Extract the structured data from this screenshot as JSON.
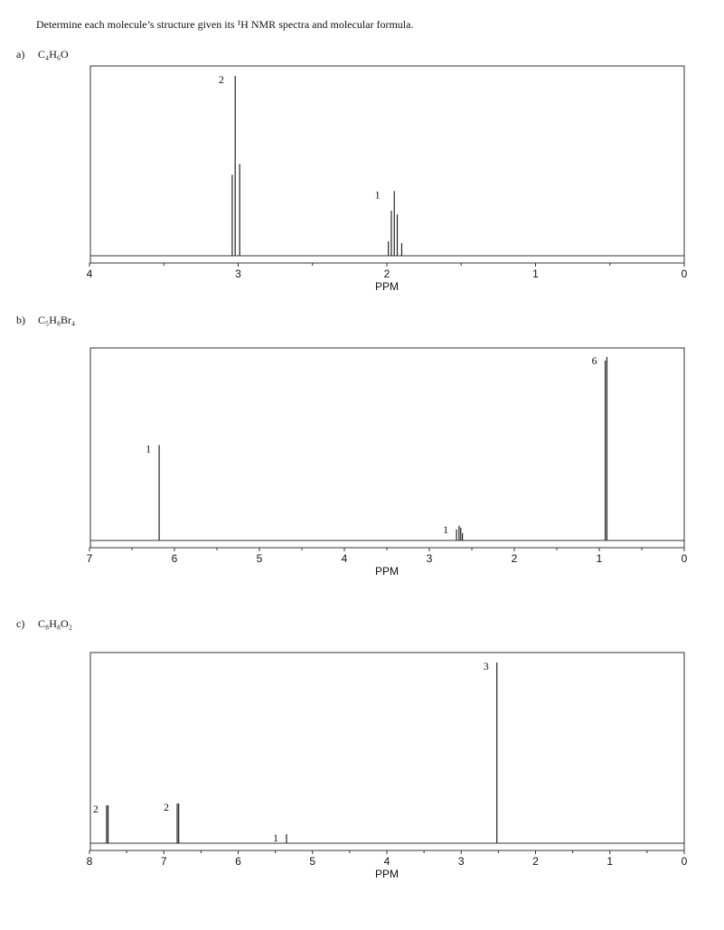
{
  "instruction": "Determine each molecule’s structure given its ¹H NMR spectra and molecular formula.",
  "problems": [
    {
      "label": "a)",
      "formula": "C₄H₆O",
      "chart_data": {
        "type": "nmr",
        "x_label": "PPM",
        "xlim": [
          4,
          0
        ],
        "xticks": [
          4,
          3,
          2,
          1,
          0
        ],
        "minor_xticks": [
          3.5,
          2.5,
          1.5,
          0.5
        ],
        "ylim": [
          0,
          1
        ],
        "peaks": [
          {
            "integration": 2,
            "x": [
              3.04,
              3.02,
              2.99
            ],
            "y": [
              0.45,
              1.0,
              0.51
            ]
          },
          {
            "integration": 1,
            "x": [
              1.99,
              1.97,
              1.95,
              1.93,
              1.9
            ],
            "y": [
              0.08,
              0.25,
              0.36,
              0.23,
              0.07
            ]
          }
        ]
      }
    },
    {
      "label": "b)",
      "formula": "C₅H₈Br₄",
      "chart_data": {
        "type": "nmr",
        "x_label": "PPM",
        "xlim": [
          7,
          0
        ],
        "xticks": [
          7,
          6,
          5,
          4,
          3,
          2,
          1,
          0
        ],
        "minor_xticks": [
          6.5,
          5.5,
          4.5,
          3.5,
          2.5,
          1.5,
          0.5
        ],
        "ylim": [
          0,
          1
        ],
        "peaks": [
          {
            "integration": 1,
            "x": [
              6.18
            ],
            "y": [
              0.52
            ]
          },
          {
            "integration": 1,
            "x": [
              2.68,
              2.65,
              2.63,
              2.61
            ],
            "y": [
              0.06,
              0.08,
              0.07,
              0.04
            ]
          },
          {
            "integration": 6,
            "x": [
              0.93,
              0.91
            ],
            "y": [
              0.98,
              1.0
            ]
          }
        ]
      }
    },
    {
      "label": "c)",
      "formula": "C₈H₈O₂",
      "chart_data": {
        "type": "nmr",
        "x_label": "PPM",
        "xlim": [
          8,
          0
        ],
        "xticks": [
          8,
          7,
          6,
          5,
          4,
          3,
          2,
          1,
          0
        ],
        "minor_xticks": [
          7.5,
          6.5,
          5.5,
          4.5,
          3.5,
          2.5,
          1.5,
          0.5
        ],
        "ylim": [
          0,
          1
        ],
        "peaks": [
          {
            "integration": 2,
            "x": [
              7.77,
              7.75
            ],
            "y": [
              0.21,
              0.21
            ]
          },
          {
            "integration": 2,
            "x": [
              6.82,
              6.8
            ],
            "y": [
              0.22,
              0.22
            ]
          },
          {
            "integration": 1,
            "x": [
              5.35
            ],
            "y": [
              0.05
            ]
          },
          {
            "integration": 3,
            "x": [
              2.52
            ],
            "y": [
              1.0
            ]
          }
        ]
      }
    }
  ]
}
